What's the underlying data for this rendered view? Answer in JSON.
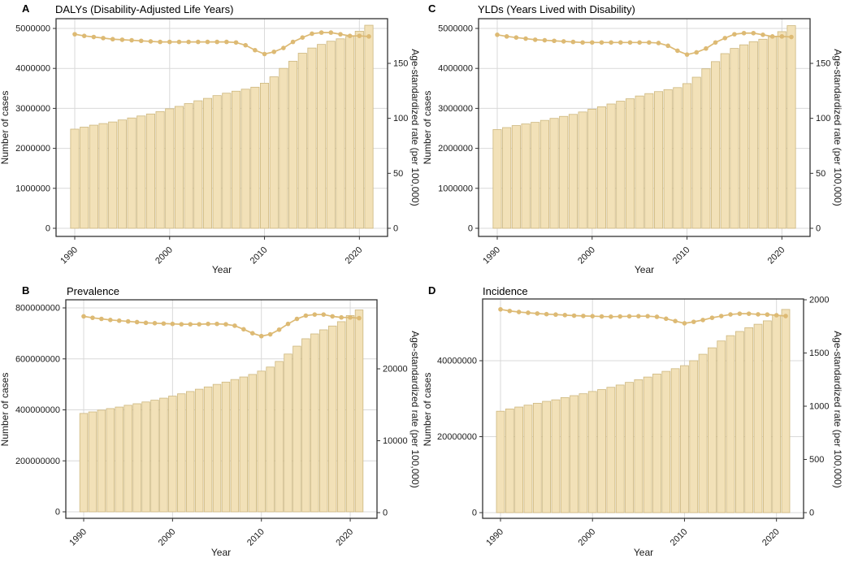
{
  "figure": {
    "x_axis_label": "Year",
    "left_axis_label": "Number of cases",
    "right_axis_label": "Age-standardized rate (per 100,000)",
    "x_tick_years": [
      1990,
      2000,
      2010,
      2020
    ],
    "years": [
      1990,
      1991,
      1992,
      1993,
      1994,
      1995,
      1996,
      1997,
      1998,
      1999,
      2000,
      2001,
      2002,
      2003,
      2004,
      2005,
      2006,
      2007,
      2008,
      2009,
      2010,
      2011,
      2012,
      2013,
      2014,
      2015,
      2016,
      2017,
      2018,
      2019,
      2020,
      2021
    ],
    "colors": {
      "bar_fill": "#F2E1B8",
      "bar_border": "#CDB77E",
      "line": "#DDBA74",
      "grid": "#D9D9D9",
      "frame": "#333333",
      "text": "#1A1A1A",
      "background": "#FFFFFF"
    }
  },
  "chart_data": [
    {
      "panel_label": "A",
      "title": "DALYs (Disability-Adjusted Life Years)",
      "type": "bar",
      "overlay": "line",
      "xlabel": "Year",
      "ylabel_left": "Number of cases",
      "ylabel_right": "Age-standardized rate (per 100,000)",
      "left_ticks": [
        0,
        1000000,
        2000000,
        3000000,
        4000000,
        5000000
      ],
      "right_ticks": [
        0,
        50,
        100,
        150
      ],
      "legend": "none",
      "grid": "major",
      "bars_number_of_cases": [
        2480000,
        2530000,
        2580000,
        2620000,
        2660000,
        2710000,
        2760000,
        2810000,
        2860000,
        2920000,
        2990000,
        3050000,
        3120000,
        3190000,
        3250000,
        3320000,
        3380000,
        3430000,
        3480000,
        3530000,
        3630000,
        3790000,
        4000000,
        4180000,
        4380000,
        4510000,
        4600000,
        4680000,
        4740000,
        4800000,
        4930000,
        5080000
      ],
      "line_age_standardized_rate": [
        176.5,
        175,
        174,
        173,
        172,
        171.5,
        171,
        170.5,
        170,
        169.5,
        169.5,
        169.5,
        169.5,
        169.5,
        169.5,
        169.5,
        169.5,
        169,
        166.5,
        162,
        158.5,
        160.5,
        164,
        169.5,
        173.5,
        177,
        178,
        178,
        176.5,
        175,
        175,
        174.5
      ]
    },
    {
      "panel_label": "B",
      "title": "Prevalence",
      "type": "bar",
      "overlay": "line",
      "xlabel": "Year",
      "ylabel_left": "Number of cases",
      "ylabel_right": "Age-standardized rate (per 100,000)",
      "left_ticks": [
        0,
        200000000,
        400000000,
        600000000,
        800000000
      ],
      "right_ticks": [
        0,
        10000,
        20000
      ],
      "legend": "none",
      "grid": "major",
      "bars_number_of_cases": [
        386000000,
        392000000,
        399000000,
        405000000,
        411000000,
        418000000,
        424000000,
        431000000,
        438000000,
        446000000,
        454000000,
        463000000,
        472000000,
        481000000,
        490000000,
        500000000,
        509000000,
        519000000,
        529000000,
        539000000,
        552000000,
        568000000,
        590000000,
        619000000,
        650000000,
        679000000,
        698000000,
        714000000,
        729000000,
        746000000,
        770000000,
        792000000
      ],
      "line_age_standardized_rate": [
        27300,
        27100,
        26950,
        26800,
        26700,
        26600,
        26500,
        26400,
        26350,
        26300,
        26250,
        26200,
        26200,
        26200,
        26250,
        26250,
        26200,
        26000,
        25500,
        24950,
        24550,
        24800,
        25450,
        26250,
        26950,
        27400,
        27550,
        27550,
        27300,
        27150,
        27150,
        27050
      ]
    },
    {
      "panel_label": "C",
      "title": "YLDs (Years Lived with Disability)",
      "type": "bar",
      "overlay": "line",
      "xlabel": "Year",
      "ylabel_left": "Number of cases",
      "ylabel_right": "Age-standardized rate (per 100,000)",
      "left_ticks": [
        0,
        1000000,
        2000000,
        3000000,
        4000000,
        5000000
      ],
      "right_ticks": [
        0,
        50,
        100,
        150
      ],
      "legend": "none",
      "grid": "major",
      "bars_number_of_cases": [
        2470000,
        2520000,
        2570000,
        2610000,
        2650000,
        2700000,
        2750000,
        2800000,
        2850000,
        2910000,
        2980000,
        3040000,
        3110000,
        3180000,
        3240000,
        3310000,
        3370000,
        3420000,
        3470000,
        3520000,
        3620000,
        3780000,
        3990000,
        4170000,
        4370000,
        4500000,
        4590000,
        4670000,
        4730000,
        4790000,
        4920000,
        5070000
      ],
      "line_age_standardized_rate": [
        176,
        174.5,
        173.5,
        172.5,
        171.5,
        171,
        170.5,
        170,
        169.5,
        169,
        169,
        169,
        169,
        169,
        169,
        169,
        169,
        168.5,
        166,
        161.5,
        158,
        160,
        163.5,
        169,
        173,
        176.5,
        177.5,
        177.5,
        176,
        174.5,
        174.5,
        174
      ]
    },
    {
      "panel_label": "D",
      "title": "Incidence",
      "type": "bar",
      "overlay": "line",
      "xlabel": "Year",
      "ylabel_left": "Number of cases",
      "ylabel_right": "Age-standardized rate (per 100,000)",
      "left_ticks": [
        0,
        20000000,
        40000000
      ],
      "right_ticks": [
        0,
        500,
        1000,
        1500,
        2000
      ],
      "legend": "none",
      "grid": "major",
      "bars_number_of_cases": [
        26700000,
        27300000,
        27800000,
        28300000,
        28800000,
        29300000,
        29700000,
        30300000,
        30800000,
        31300000,
        31900000,
        32400000,
        33000000,
        33600000,
        34300000,
        35000000,
        35700000,
        36500000,
        37200000,
        37900000,
        38700000,
        40000000,
        41700000,
        43400000,
        45200000,
        46600000,
        47700000,
        48700000,
        49600000,
        50500000,
        52000000,
        53500000
      ],
      "line_age_standardized_rate": [
        1910,
        1895,
        1885,
        1878,
        1871,
        1865,
        1861,
        1856,
        1851,
        1848,
        1846,
        1843,
        1841,
        1843,
        1845,
        1846,
        1846,
        1840,
        1822,
        1800,
        1779,
        1793,
        1810,
        1831,
        1847,
        1862,
        1869,
        1869,
        1863,
        1861,
        1855,
        1847
      ]
    }
  ]
}
